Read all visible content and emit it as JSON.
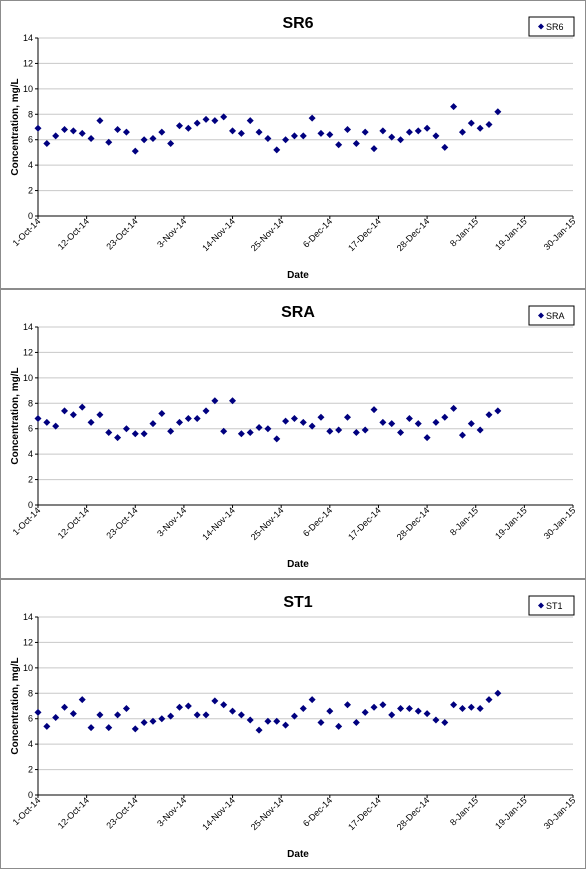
{
  "chart_data": [
    {
      "type": "scatter",
      "title": "SR6",
      "xlabel": "Date",
      "ylabel": "Concentration, mg/L",
      "ylim": [
        0,
        14
      ],
      "yticks": [
        "0",
        "2",
        "4",
        "6",
        "8",
        "10",
        "12",
        "14"
      ],
      "xticks": [
        "1-Oct-14",
        "12-Oct-14",
        "23-Oct-14",
        "3-Nov-14",
        "14-Nov-14",
        "25-Nov-14",
        "6-Dec-14",
        "17-Dec-14",
        "28-Dec-14",
        "8-Jan-15",
        "19-Jan-15",
        "30-Jan-15"
      ],
      "legend": "top-right",
      "series": [
        {
          "name": "SR6",
          "color": "#00007f",
          "marker": "diamond",
          "points": [
            [
              "1-Oct-14",
              6.9
            ],
            [
              "3-Oct-14",
              5.7
            ],
            [
              "5-Oct-14",
              6.3
            ],
            [
              "7-Oct-14",
              6.8
            ],
            [
              "9-Oct-14",
              6.7
            ],
            [
              "11-Oct-14",
              6.5
            ],
            [
              "13-Oct-14",
              6.1
            ],
            [
              "15-Oct-14",
              7.5
            ],
            [
              "17-Oct-14",
              5.8
            ],
            [
              "19-Oct-14",
              6.8
            ],
            [
              "21-Oct-14",
              6.6
            ],
            [
              "23-Oct-14",
              5.1
            ],
            [
              "25-Oct-14",
              6.0
            ],
            [
              "27-Oct-14",
              6.1
            ],
            [
              "29-Oct-14",
              6.6
            ],
            [
              "31-Oct-14",
              5.7
            ],
            [
              "2-Nov-14",
              7.1
            ],
            [
              "4-Nov-14",
              6.9
            ],
            [
              "6-Nov-14",
              7.3
            ],
            [
              "8-Nov-14",
              7.6
            ],
            [
              "10-Nov-14",
              7.5
            ],
            [
              "12-Nov-14",
              7.8
            ],
            [
              "14-Nov-14",
              6.7
            ],
            [
              "16-Nov-14",
              6.5
            ],
            [
              "18-Nov-14",
              7.5
            ],
            [
              "20-Nov-14",
              6.6
            ],
            [
              "22-Nov-14",
              6.1
            ],
            [
              "24-Nov-14",
              5.2
            ],
            [
              "26-Nov-14",
              6.0
            ],
            [
              "28-Nov-14",
              6.3
            ],
            [
              "30-Nov-14",
              6.3
            ],
            [
              "2-Dec-14",
              7.7
            ],
            [
              "4-Dec-14",
              6.5
            ],
            [
              "6-Dec-14",
              6.4
            ],
            [
              "8-Dec-14",
              5.6
            ],
            [
              "10-Dec-14",
              6.8
            ],
            [
              "12-Dec-14",
              5.7
            ],
            [
              "14-Dec-14",
              6.6
            ],
            [
              "16-Dec-14",
              5.3
            ],
            [
              "18-Dec-14",
              6.7
            ],
            [
              "20-Dec-14",
              6.2
            ],
            [
              "22-Dec-14",
              6.0
            ],
            [
              "24-Dec-14",
              6.6
            ],
            [
              "26-Dec-14",
              6.7
            ],
            [
              "28-Dec-14",
              6.9
            ],
            [
              "30-Dec-14",
              6.3
            ],
            [
              "1-Jan-15",
              5.4
            ],
            [
              "3-Jan-15",
              8.6
            ],
            [
              "5-Jan-15",
              6.6
            ],
            [
              "7-Jan-15",
              7.3
            ],
            [
              "9-Jan-15",
              6.9
            ],
            [
              "11-Jan-15",
              7.2
            ],
            [
              "13-Jan-15",
              8.2
            ]
          ]
        }
      ]
    },
    {
      "type": "scatter",
      "title": "SRA",
      "xlabel": "Date",
      "ylabel": "Concentration, mg/L",
      "ylim": [
        0,
        14
      ],
      "yticks": [
        "0",
        "2",
        "4",
        "6",
        "8",
        "10",
        "12",
        "14"
      ],
      "xticks": [
        "1-Oct-14",
        "12-Oct-14",
        "23-Oct-14",
        "3-Nov-14",
        "14-Nov-14",
        "25-Nov-14",
        "6-Dec-14",
        "17-Dec-14",
        "28-Dec-14",
        "8-Jan-15",
        "19-Jan-15",
        "30-Jan-15"
      ],
      "legend": "top-right",
      "series": [
        {
          "name": "SRA",
          "color": "#00007f",
          "marker": "diamond",
          "points": [
            [
              "1-Oct-14",
              6.8
            ],
            [
              "3-Oct-14",
              6.5
            ],
            [
              "5-Oct-14",
              6.2
            ],
            [
              "7-Oct-14",
              7.4
            ],
            [
              "9-Oct-14",
              7.1
            ],
            [
              "11-Oct-14",
              7.7
            ],
            [
              "13-Oct-14",
              6.5
            ],
            [
              "15-Oct-14",
              7.1
            ],
            [
              "17-Oct-14",
              5.7
            ],
            [
              "19-Oct-14",
              5.3
            ],
            [
              "21-Oct-14",
              6.0
            ],
            [
              "23-Oct-14",
              5.6
            ],
            [
              "25-Oct-14",
              5.6
            ],
            [
              "27-Oct-14",
              6.4
            ],
            [
              "29-Oct-14",
              7.2
            ],
            [
              "31-Oct-14",
              5.8
            ],
            [
              "2-Nov-14",
              6.5
            ],
            [
              "4-Nov-14",
              6.8
            ],
            [
              "6-Nov-14",
              6.8
            ],
            [
              "8-Nov-14",
              7.4
            ],
            [
              "10-Nov-14",
              8.2
            ],
            [
              "12-Nov-14",
              5.8
            ],
            [
              "14-Nov-14",
              8.2
            ],
            [
              "16-Nov-14",
              5.6
            ],
            [
              "18-Nov-14",
              5.7
            ],
            [
              "20-Nov-14",
              6.1
            ],
            [
              "22-Nov-14",
              6.0
            ],
            [
              "24-Nov-14",
              5.2
            ],
            [
              "26-Nov-14",
              6.6
            ],
            [
              "28-Nov-14",
              6.8
            ],
            [
              "30-Nov-14",
              6.5
            ],
            [
              "2-Dec-14",
              6.2
            ],
            [
              "4-Dec-14",
              6.9
            ],
            [
              "6-Dec-14",
              5.8
            ],
            [
              "8-Dec-14",
              5.9
            ],
            [
              "10-Dec-14",
              6.9
            ],
            [
              "12-Dec-14",
              5.7
            ],
            [
              "14-Dec-14",
              5.9
            ],
            [
              "16-Dec-14",
              7.5
            ],
            [
              "18-Dec-14",
              6.5
            ],
            [
              "20-Dec-14",
              6.4
            ],
            [
              "22-Dec-14",
              5.7
            ],
            [
              "24-Dec-14",
              6.8
            ],
            [
              "26-Dec-14",
              6.4
            ],
            [
              "28-Dec-14",
              5.3
            ],
            [
              "30-Dec-14",
              6.5
            ],
            [
              "1-Jan-15",
              6.9
            ],
            [
              "3-Jan-15",
              7.6
            ],
            [
              "5-Jan-15",
              5.5
            ],
            [
              "7-Jan-15",
              6.4
            ],
            [
              "9-Jan-15",
              5.9
            ],
            [
              "11-Jan-15",
              7.1
            ],
            [
              "13-Jan-15",
              7.4
            ]
          ]
        }
      ]
    },
    {
      "type": "scatter",
      "title": "ST1",
      "xlabel": "Date",
      "ylabel": "Concentration, mg/L",
      "ylim": [
        0,
        14
      ],
      "yticks": [
        "0",
        "2",
        "4",
        "6",
        "8",
        "10",
        "12",
        "14"
      ],
      "xticks": [
        "1-Oct-14",
        "12-Oct-14",
        "23-Oct-14",
        "3-Nov-14",
        "14-Nov-14",
        "25-Nov-14",
        "6-Dec-14",
        "17-Dec-14",
        "28-Dec-14",
        "8-Jan-15",
        "19-Jan-15",
        "30-Jan-15"
      ],
      "legend": "top-right",
      "series": [
        {
          "name": "ST1",
          "color": "#00007f",
          "marker": "diamond",
          "points": [
            [
              "1-Oct-14",
              6.5
            ],
            [
              "3-Oct-14",
              5.4
            ],
            [
              "5-Oct-14",
              6.1
            ],
            [
              "7-Oct-14",
              6.9
            ],
            [
              "9-Oct-14",
              6.4
            ],
            [
              "11-Oct-14",
              7.5
            ],
            [
              "13-Oct-14",
              5.3
            ],
            [
              "15-Oct-14",
              6.3
            ],
            [
              "17-Oct-14",
              5.3
            ],
            [
              "19-Oct-14",
              6.3
            ],
            [
              "21-Oct-14",
              6.8
            ],
            [
              "23-Oct-14",
              5.2
            ],
            [
              "25-Oct-14",
              5.7
            ],
            [
              "27-Oct-14",
              5.8
            ],
            [
              "29-Oct-14",
              6.0
            ],
            [
              "31-Oct-14",
              6.2
            ],
            [
              "2-Nov-14",
              6.9
            ],
            [
              "4-Nov-14",
              7.0
            ],
            [
              "6-Nov-14",
              6.3
            ],
            [
              "8-Nov-14",
              6.3
            ],
            [
              "10-Nov-14",
              7.4
            ],
            [
              "12-Nov-14",
              7.1
            ],
            [
              "14-Nov-14",
              6.6
            ],
            [
              "16-Nov-14",
              6.3
            ],
            [
              "18-Nov-14",
              5.9
            ],
            [
              "20-Nov-14",
              5.1
            ],
            [
              "22-Nov-14",
              5.8
            ],
            [
              "24-Nov-14",
              5.8
            ],
            [
              "26-Nov-14",
              5.5
            ],
            [
              "28-Nov-14",
              6.2
            ],
            [
              "30-Nov-14",
              6.8
            ],
            [
              "2-Dec-14",
              7.5
            ],
            [
              "4-Dec-14",
              5.7
            ],
            [
              "6-Dec-14",
              6.6
            ],
            [
              "8-Dec-14",
              5.4
            ],
            [
              "10-Dec-14",
              7.1
            ],
            [
              "12-Dec-14",
              5.7
            ],
            [
              "14-Dec-14",
              6.5
            ],
            [
              "16-Dec-14",
              6.9
            ],
            [
              "18-Dec-14",
              7.1
            ],
            [
              "20-Dec-14",
              6.3
            ],
            [
              "22-Dec-14",
              6.8
            ],
            [
              "24-Dec-14",
              6.8
            ],
            [
              "26-Dec-14",
              6.6
            ],
            [
              "28-Dec-14",
              6.4
            ],
            [
              "30-Dec-14",
              5.9
            ],
            [
              "1-Jan-15",
              5.7
            ],
            [
              "3-Jan-15",
              7.1
            ],
            [
              "5-Jan-15",
              6.8
            ],
            [
              "7-Jan-15",
              6.9
            ],
            [
              "9-Jan-15",
              6.8
            ],
            [
              "11-Jan-15",
              7.5
            ],
            [
              "13-Jan-15",
              8.0
            ]
          ]
        }
      ]
    }
  ]
}
